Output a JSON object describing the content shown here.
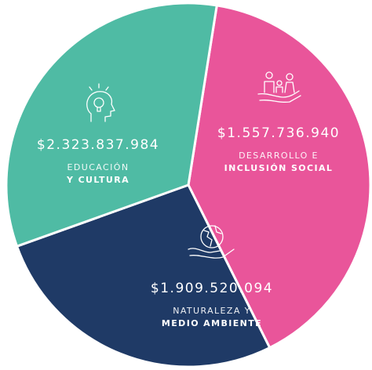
{
  "chart_data": {
    "type": "pie",
    "categories": [
      [
        "EDUCACIÓN",
        "Y CULTURA"
      ],
      [
        "DESARROLLO E",
        "INCLUSIÓN SOCIAL"
      ],
      [
        "NATURALEZA Y",
        "MEDIO AMBIENTE"
      ]
    ],
    "values": [
      2323837984,
      1557736940,
      1909520094
    ],
    "value_labels": [
      "$2.323.837.984",
      "$1.557.736.940",
      "$1.909.520.094"
    ],
    "colors": [
      "#e9559a",
      "#1f3a66",
      "#4fbba4"
    ]
  }
}
